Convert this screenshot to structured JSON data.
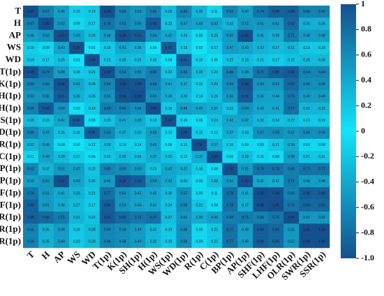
{
  "chart_data": {
    "type": "heatmap",
    "categories": [
      "T",
      "H",
      "AP",
      "WS",
      "WD",
      "T(1p)",
      "K(1p)",
      "SH(1p)",
      "H(1p)",
      "WS(1p)",
      "WD(1p)",
      "R(1p)",
      "C(1p)",
      "BP(1p)",
      "AP(1p)",
      "SHF(1p)",
      "LHF(1p)",
      "OLR(1p)",
      "SWR(1p)",
      "SSR(1p)"
    ],
    "values": [
      [
        1,
        0.67,
        0.46,
        0.15,
        0.19,
        0.98,
        0.63,
        0.53,
        0.66,
        0.28,
        0.65,
        0.32,
        0.11,
        0.63,
        0.46,
        0.74,
        0.88,
        0.88,
        0.66,
        0.66
      ],
      [
        0.67,
        1,
        0.52,
        0.09,
        0.17,
        0.74,
        0.62,
        0.55,
        0.93,
        0.23,
        0.47,
        0.43,
        0.43,
        0.32,
        0.52,
        0.51,
        0.51,
        0.82,
        0.35,
        0.35
      ],
      [
        0.46,
        0.52,
        1,
        0.43,
        0.26,
        0.48,
        0.98,
        0.91,
        0.54,
        0.42,
        0.25,
        0.08,
        0.28,
        0.51,
        1,
        0.41,
        0.38,
        0.71,
        0.48,
        0.48
      ],
      [
        0.15,
        0.09,
        0.43,
        1,
        0.01,
        0.18,
        0.41,
        0.35,
        0.03,
        0.92,
        0.18,
        0.02,
        0.17,
        0.47,
        0.43,
        0.33,
        0.27,
        0.31,
        0.19,
        0.19
      ],
      [
        0.19,
        0.17,
        0.25,
        0.01,
        1,
        0.21,
        0.28,
        0.25,
        0.18,
        0.03,
        0.91,
        0.12,
        0.06,
        0.22,
        0.26,
        0.21,
        0.17,
        0.22,
        0.28,
        0.28
      ],
      [
        0.98,
        0.74,
        0.48,
        0.18,
        0.21,
        1,
        0.64,
        0.55,
        0.69,
        0.23,
        0.63,
        0.28,
        0.2,
        0.65,
        0.48,
        0.77,
        0.89,
        0.92,
        0.64,
        0.64
      ],
      [
        0.63,
        0.62,
        0.98,
        0.41,
        0.28,
        0.64,
        1,
        0.96,
        0.66,
        0.41,
        0.37,
        0.15,
        0.29,
        0.59,
        0.98,
        0.54,
        0.53,
        0.82,
        0.58,
        0.58
      ],
      [
        0.53,
        0.55,
        0.91,
        0.35,
        0.25,
        0.55,
        0.96,
        1,
        0.56,
        0.38,
        0.3,
        0.14,
        0.26,
        0.5,
        0.91,
        0.45,
        0.44,
        0.73,
        0.49,
        0.49
      ],
      [
        0.66,
        0.93,
        0.54,
        0.03,
        0.18,
        0.69,
        0.66,
        0.56,
        1,
        0.18,
        0.48,
        0.43,
        0.37,
        0.23,
        0.54,
        0.42,
        0.41,
        0.77,
        0.32,
        0.32
      ],
      [
        0.28,
        0.23,
        0.42,
        0.92,
        0.03,
        0.23,
        0.41,
        0.38,
        0.18,
        1,
        0.1,
        0.06,
        0.23,
        0.42,
        0.42,
        0.3,
        0.24,
        0.27,
        0.19,
        0.19
      ],
      [
        0.65,
        0.47,
        0.25,
        0.18,
        0.91,
        0.63,
        0.37,
        0.3,
        0.48,
        0.1,
        1,
        0.15,
        0.12,
        0.37,
        0.24,
        0.57,
        0.59,
        0.52,
        0.58,
        0.58
      ],
      [
        0.32,
        0.43,
        0.08,
        0.02,
        0.12,
        0.28,
        0.15,
        0.14,
        0.43,
        0.06,
        0.15,
        1,
        0.37,
        0.16,
        0.08,
        0.09,
        0.21,
        0.38,
        0.09,
        0.09
      ],
      [
        0.11,
        0.43,
        0.28,
        0.17,
        0.06,
        0.2,
        0.29,
        0.26,
        0.37,
        0.23,
        0.12,
        0.37,
        1,
        0.06,
        0.28,
        0.11,
        0.08,
        0.46,
        0.21,
        0.21
      ],
      [
        0.63,
        0.32,
        0.51,
        0.47,
        0.22,
        0.65,
        0.59,
        0.5,
        0.23,
        0.42,
        0.37,
        0.16,
        0.06,
        1,
        0.51,
        0.78,
        0.78,
        0.68,
        0.77,
        0.77
      ],
      [
        0.46,
        0.52,
        1,
        0.43,
        0.26,
        0.48,
        0.98,
        0.91,
        0.54,
        0.42,
        0.24,
        0.08,
        0.28,
        0.51,
        1,
        0.41,
        0.37,
        0.71,
        0.48,
        0.48
      ],
      [
        0.74,
        0.51,
        0.41,
        0.33,
        0.21,
        0.77,
        0.54,
        0.45,
        0.42,
        0.3,
        0.57,
        0.09,
        0.11,
        0.78,
        0.41,
        1,
        0.98,
        0.66,
        0.9,
        0.9
      ],
      [
        0.88,
        0.51,
        0.38,
        0.27,
        0.17,
        0.89,
        0.53,
        0.44,
        0.41,
        0.24,
        0.59,
        0.21,
        0.08,
        0.78,
        0.37,
        0.98,
        1,
        0.75,
        0.83,
        0.83
      ],
      [
        0.88,
        0.82,
        0.71,
        0.31,
        0.22,
        0.92,
        0.82,
        0.73,
        0.77,
        0.27,
        0.52,
        0.38,
        0.46,
        0.68,
        0.71,
        0.66,
        0.75,
        1,
        0.52,
        0.52
      ],
      [
        0.66,
        0.35,
        0.48,
        0.19,
        0.28,
        0.64,
        0.58,
        0.49,
        0.32,
        0.19,
        0.58,
        0.09,
        0.21,
        0.77,
        0.48,
        0.9,
        0.83,
        0.52,
        1,
        1
      ],
      [
        0.66,
        0.35,
        0.48,
        0.19,
        0.28,
        0.64,
        0.58,
        0.49,
        0.32,
        0.19,
        0.58,
        0.09,
        0.21,
        0.77,
        0.48,
        0.9,
        0.83,
        0.52,
        1,
        1
      ]
    ],
    "value_labels": [
      [
        "1.00",
        "0.67",
        "0.46",
        "0.15",
        "0.19",
        "0.98",
        "0.63",
        "0.53",
        "0.66",
        "0.28",
        "0.65",
        "0.32",
        "0.11",
        "0.63",
        "0.46",
        "0.74",
        "0.88",
        "0.88",
        "0.66",
        "0.66"
      ],
      [
        "0.67",
        "1.00",
        "0.52",
        "0.09",
        "0.17",
        "0.74",
        "0.62",
        "0.55",
        "0.93",
        "0.23",
        "0.47",
        "0.43",
        "0.43",
        "0.32",
        "0.52",
        "0.51",
        "0.51",
        "0.82",
        "0.35",
        "0.35"
      ],
      [
        "0.46",
        "0.52",
        "1.00",
        "0.43",
        "0.26",
        "0.48",
        "0.98",
        "0.91",
        "0.54",
        "0.42",
        "0.25",
        "0.08",
        "0.28",
        "0.51",
        "1.00",
        "0.41",
        "0.38",
        "0.71",
        "0.48",
        "0.48"
      ],
      [
        "0.15",
        "0.09",
        "0.43",
        "1.00",
        "0.01",
        "0.18",
        "0.41",
        "0.35",
        "0.03",
        "0.92",
        "0.18",
        "0.02",
        "0.17",
        "0.47",
        "0.43",
        "0.33",
        "0.27",
        "0.31",
        "0.19",
        "0.19"
      ],
      [
        "0.19",
        "0.17",
        "0.25",
        "0.01",
        "1.00",
        "0.21",
        "0.28",
        "0.25",
        "0.18",
        "0.03",
        "0.91",
        "0.12",
        "0.06",
        "0.22",
        "0.26",
        "0.21",
        "0.17",
        "0.22",
        "0.28",
        "0.28"
      ],
      [
        "0.98",
        "0.74",
        "0.48",
        "0.18",
        "0.21",
        "1.00",
        "0.64",
        "0.55",
        "0.69",
        "0.23",
        "0.63",
        "0.28",
        "0.20",
        "0.65",
        "0.48",
        "0.77",
        "0.89",
        "0.92",
        "0.64",
        "0.64"
      ],
      [
        "0.63",
        "0.62",
        "0.98",
        "0.41",
        "0.28",
        "0.64",
        "1.00",
        "0.96",
        "0.66",
        "0.41",
        "0.37",
        "0.15",
        "0.29",
        "0.59",
        "0.98",
        "0.54",
        "0.53",
        "0.82",
        "0.58",
        "0.58"
      ],
      [
        "0.53",
        "0.55",
        "0.91",
        "0.35",
        "0.25",
        "0.55",
        "0.96",
        "1.00",
        "0.56",
        "0.38",
        "0.30",
        "0.14",
        "0.26",
        "0.50",
        "0.91",
        "0.45",
        "0.44",
        "0.73",
        "0.49",
        "0.49"
      ],
      [
        "0.66",
        "0.93",
        "0.54",
        "0.03",
        "0.18",
        "0.69",
        "0.66",
        "0.56",
        "1.00",
        "0.18",
        "0.48",
        "0.43",
        "0.37",
        "0.23",
        "0.54",
        "0.42",
        "0.41",
        "0.77",
        "0.32",
        "0.32"
      ],
      [
        "0.28",
        "0.23",
        "0.42",
        "0.92",
        "0.03",
        "0.23",
        "0.41",
        "0.38",
        "0.18",
        "1.00",
        "0.10",
        "0.06",
        "0.23",
        "0.42",
        "0.42",
        "0.30",
        "0.24",
        "0.27",
        "0.19",
        "0.19"
      ],
      [
        "0.65",
        "0.47",
        "0.25",
        "0.18",
        "0.91",
        "0.63",
        "0.37",
        "0.30",
        "0.48",
        "0.10",
        "1.00",
        "0.15",
        "0.12",
        "0.37",
        "0.24",
        "0.57",
        "0.59",
        "0.52",
        "0.58",
        "0.58"
      ],
      [
        "0.32",
        "0.43",
        "0.08",
        "0.02",
        "0.12",
        "0.28",
        "0.15",
        "0.14",
        "0.43",
        "0.06",
        "0.15",
        "1.00",
        "0.37",
        "0.16",
        "0.08",
        "0.09",
        "0.21",
        "0.38",
        "0.09",
        "0.09"
      ],
      [
        "0.11",
        "0.43",
        "0.28",
        "0.17",
        "0.06",
        "0.20",
        "0.29",
        "0.26",
        "0.37",
        "0.23",
        "0.12",
        "0.37",
        "1.00",
        "0.06",
        "0.28",
        "0.11",
        "0.08",
        "0.46",
        "0.21",
        "0.21"
      ],
      [
        "0.63",
        "0.32",
        "0.51",
        "0.47",
        "0.22",
        "0.65",
        "0.59",
        "0.50",
        "0.23",
        "0.42",
        "0.37",
        "0.16",
        "0.06",
        "1.00",
        "0.51",
        "0.78",
        "0.78",
        "0.68",
        "0.77",
        "0.77"
      ],
      [
        "0.46",
        "0.52",
        "1.00",
        "0.43",
        "0.26",
        "0.48",
        "0.98",
        "0.91",
        "0.54",
        "0.42",
        "0.24",
        "0.08",
        "0.28",
        "0.51",
        "1.00",
        "0.41",
        "0.37",
        "0.71",
        "0.48",
        "0.48"
      ],
      [
        "0.74",
        "0.51",
        "0.41",
        "0.33",
        "0.21",
        "0.77",
        "0.54",
        "0.45",
        "0.42",
        "0.30",
        "0.57",
        "0.09",
        "0.11",
        "0.78",
        "0.41",
        "1.00",
        "0.98",
        "0.66",
        "0.90",
        "0.90"
      ],
      [
        "0.88",
        "0.51",
        "0.38",
        "0.27",
        "0.17",
        "0.89",
        "0.53",
        "0.44",
        "0.41",
        "0.24",
        "0.59",
        "0.21",
        "0.08",
        "0.78",
        "0.37",
        "0.98",
        "1.00",
        "0.75",
        "0.83",
        "0.83"
      ],
      [
        "0.88",
        "0.82",
        "0.71",
        "0.31",
        "0.22",
        "0.92",
        "0.82",
        "0.73",
        "0.77",
        "0.27",
        "0.52",
        "0.38",
        "0.46",
        "0.68",
        "0.71",
        "0.66",
        "0.75",
        "1.00",
        "0.52",
        "0.52"
      ],
      [
        "0.66",
        "0.35",
        "0.48",
        "0.19",
        "0.28",
        "0.64",
        "0.58",
        "0.49",
        "0.32",
        "0.19",
        "0.58",
        "0.09",
        "0.21",
        "0.77",
        "0.48",
        "0.90",
        "0.83",
        "0.52",
        "1.00",
        "1.00"
      ],
      [
        "0.66",
        "0.35",
        "0.48",
        "0.19",
        "0.28",
        "0.64",
        "0.58",
        "0.49",
        "0.32",
        "0.19",
        "0.58",
        "0.09",
        "0.21",
        "0.77",
        "0.48",
        "0.90",
        "0.83",
        "0.52",
        "1.00",
        "1.00"
      ]
    ],
    "zlim": [
      -1,
      1
    ],
    "zticks": [
      1,
      0.8,
      0.6,
      0.4,
      0.2,
      0,
      -0.2,
      -0.4,
      -0.6,
      -0.8,
      {
        "value": -1,
        "label": "-1.0"
      }
    ],
    "colors": [
      "#14508e",
      "#12e4f8",
      "#14508e"
    ]
  }
}
